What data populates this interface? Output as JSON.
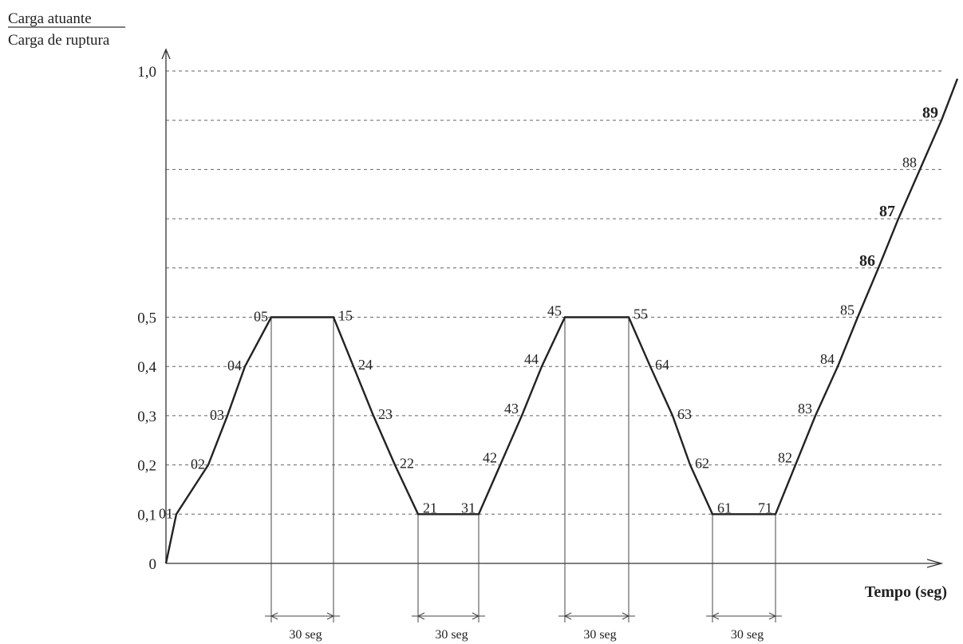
{
  "chart_data": {
    "type": "line",
    "ylabel_num": "Carga atuante",
    "ylabel_den": "Carga de ruptura",
    "xlabel": "Tempo (seg)",
    "ylim": [
      0,
      1.0
    ],
    "grid": "horizontal dashed",
    "y_ticks": [
      {
        "value": 0,
        "label": "0"
      },
      {
        "value": 0.1,
        "label": "0,1"
      },
      {
        "value": 0.2,
        "label": "0,2"
      },
      {
        "value": 0.3,
        "label": "0,3"
      },
      {
        "value": 0.4,
        "label": "0,4"
      },
      {
        "value": 0.5,
        "label": "0,5"
      },
      {
        "value": 1.0,
        "label": "1,0"
      }
    ],
    "grid_levels": [
      0.1,
      0.2,
      0.3,
      0.4,
      0.5,
      0.6,
      0.7,
      0.8,
      0.9,
      1.0
    ],
    "series": [
      {
        "points": [
          {
            "label": "01",
            "y": 0.1
          },
          {
            "label": "02",
            "y": 0.2
          },
          {
            "label": "03",
            "y": 0.3
          },
          {
            "label": "04",
            "y": 0.4
          },
          {
            "label": "05",
            "y": 0.5
          },
          {
            "label": "15",
            "y": 0.5
          },
          {
            "label": "24",
            "y": 0.4
          },
          {
            "label": "23",
            "y": 0.3
          },
          {
            "label": "22",
            "y": 0.2
          },
          {
            "label": "21",
            "y": 0.1
          },
          {
            "label": "31",
            "y": 0.1
          },
          {
            "label": "42",
            "y": 0.2
          },
          {
            "label": "43",
            "y": 0.3
          },
          {
            "label": "44",
            "y": 0.4
          },
          {
            "label": "45",
            "y": 0.5
          },
          {
            "label": "55",
            "y": 0.5
          },
          {
            "label": "64",
            "y": 0.4
          },
          {
            "label": "63",
            "y": 0.3
          },
          {
            "label": "62",
            "y": 0.2
          },
          {
            "label": "61",
            "y": 0.1
          },
          {
            "label": "71",
            "y": 0.1
          },
          {
            "label": "82",
            "y": 0.2
          },
          {
            "label": "83",
            "y": 0.3
          },
          {
            "label": "84",
            "y": 0.4
          },
          {
            "label": "85",
            "y": 0.5
          },
          {
            "label": "86",
            "y": 0.6
          },
          {
            "label": "87",
            "y": 0.7
          },
          {
            "label": "88",
            "y": 0.8
          },
          {
            "label": "89",
            "y": 0.9
          }
        ]
      }
    ],
    "hold_intervals": [
      {
        "from": "05",
        "to": "15",
        "label": "30 seg"
      },
      {
        "from": "21",
        "to": "31",
        "label": "30 seg"
      },
      {
        "from": "45",
        "to": "55",
        "label": "30 seg"
      },
      {
        "from": "61",
        "to": "71",
        "label": "30 seg"
      }
    ]
  }
}
